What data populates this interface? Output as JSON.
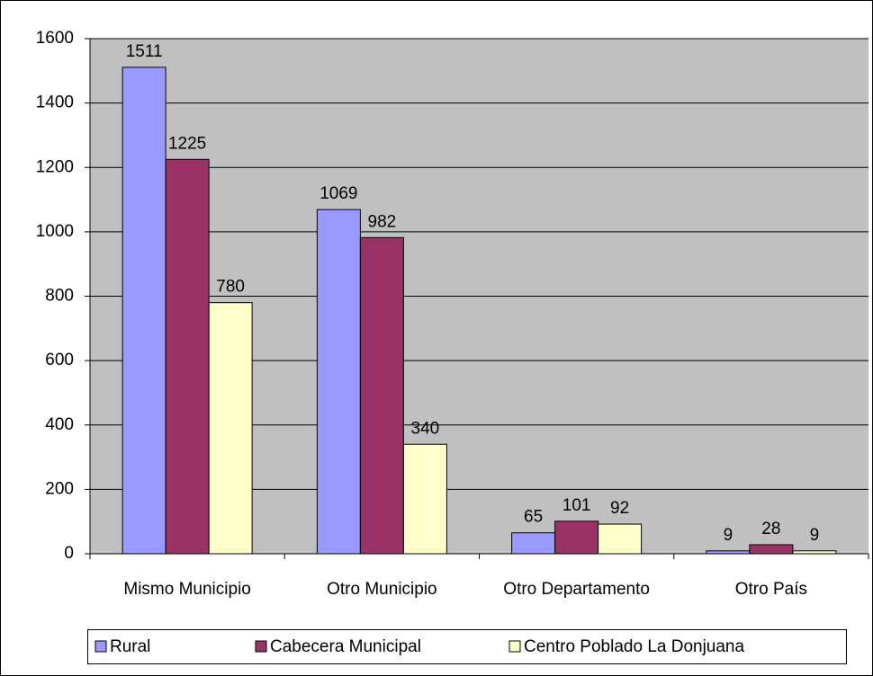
{
  "chart_data": {
    "type": "bar",
    "categories": [
      "Mismo Municipio",
      "Otro Municipio",
      "Otro Departamento",
      "Otro País"
    ],
    "series": [
      {
        "name": "Rural",
        "color": "#9999ff",
        "values": [
          1511,
          1069,
          65,
          9
        ]
      },
      {
        "name": "Cabecera Municipal",
        "color": "#993366",
        "values": [
          1225,
          982,
          101,
          28
        ]
      },
      {
        "name": "Centro Poblado La Donjuana",
        "color": "#ffffcc",
        "values": [
          780,
          340,
          92,
          9
        ]
      }
    ],
    "ylim": [
      0,
      1600
    ],
    "yticks": [
      0,
      200,
      400,
      600,
      800,
      1000,
      1200,
      1400,
      1600
    ],
    "grid": true,
    "legend": "bottom",
    "data_labels": true
  }
}
